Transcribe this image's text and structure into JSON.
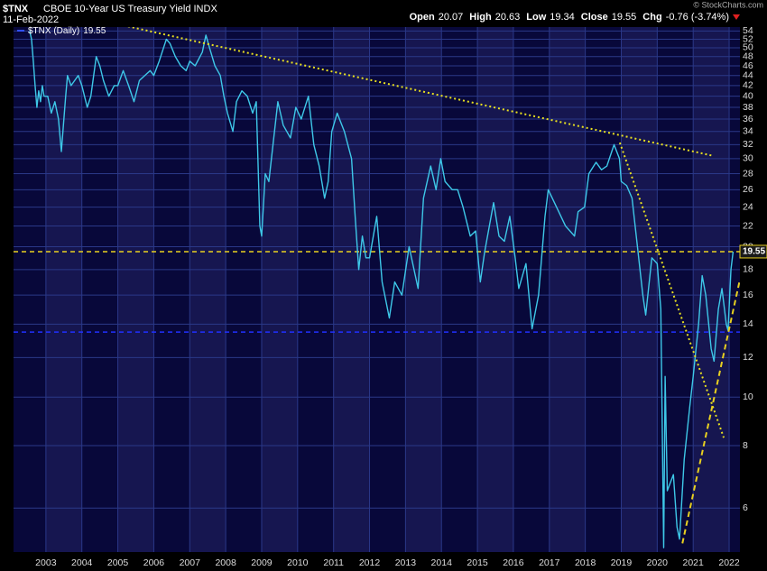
{
  "chart_data": {
    "type": "line",
    "symbol": "$TNX",
    "title": "CBOE 10-Year US Treasury Yield INDX",
    "date": "11-Feb-2022",
    "copyright": "© StockCharts.com",
    "stats": [
      {
        "label": "Open",
        "value": 20.07
      },
      {
        "label": "High",
        "value": 20.63
      },
      {
        "label": "Low",
        "value": 19.34
      },
      {
        "label": "Close",
        "value": 19.55
      },
      {
        "label": "Chg",
        "value": "-0.76 (-3.74%)"
      }
    ],
    "log_scale": true,
    "grid": true,
    "xlim": [
      2002.1,
      2022.3
    ],
    "xticks": [
      {
        "value": 2003,
        "label": "2003"
      },
      {
        "value": 2004,
        "label": "2004"
      },
      {
        "value": 2005,
        "label": "2005"
      },
      {
        "value": 2006,
        "label": "2006"
      },
      {
        "value": 2007,
        "label": "2007"
      },
      {
        "value": 2008,
        "label": "2008"
      },
      {
        "value": 2009,
        "label": "2009"
      },
      {
        "value": 2010,
        "label": "2010"
      },
      {
        "value": 2011,
        "label": "2011"
      },
      {
        "value": 2012,
        "label": "2012"
      },
      {
        "value": 2013,
        "label": "2013"
      },
      {
        "value": 2014,
        "label": "2014"
      },
      {
        "value": 2015,
        "label": "2015"
      },
      {
        "value": 2016,
        "label": "2016"
      },
      {
        "value": 2017,
        "label": "2017"
      },
      {
        "value": 2018,
        "label": "2018"
      },
      {
        "value": 2019,
        "label": "2019"
      },
      {
        "value": 2020,
        "label": "2020"
      },
      {
        "value": 2021,
        "label": "2021"
      },
      {
        "value": 2022,
        "label": "2022"
      }
    ],
    "ylim": [
      4.9,
      55
    ],
    "yticks": [
      6,
      8,
      10,
      12,
      14,
      16,
      18,
      20,
      22,
      24,
      26,
      28,
      30,
      32,
      34,
      36,
      38,
      40,
      42,
      44,
      46,
      48,
      50,
      52,
      54
    ],
    "x": [
      2002.55,
      2002.6,
      2002.65,
      2002.7,
      2002.75,
      2002.8,
      2002.85,
      2002.9,
      2002.95,
      2003.05,
      2003.15,
      2003.25,
      2003.35,
      2003.43,
      2003.55,
      2003.6,
      2003.7,
      2003.8,
      2003.9,
      2004.0,
      2004.15,
      2004.25,
      2004.4,
      2004.5,
      2004.6,
      2004.75,
      2004.9,
      2005.0,
      2005.15,
      2005.3,
      2005.45,
      2005.6,
      2005.75,
      2005.9,
      2006.0,
      2006.15,
      2006.35,
      2006.45,
      2006.6,
      2006.75,
      2006.9,
      2007.0,
      2007.15,
      2007.35,
      2007.45,
      2007.55,
      2007.7,
      2007.85,
      2007.95,
      2008.05,
      2008.2,
      2008.3,
      2008.45,
      2008.6,
      2008.75,
      2008.85,
      2008.95,
      2009.0,
      2009.1,
      2009.2,
      2009.45,
      2009.6,
      2009.8,
      2009.95,
      2010.1,
      2010.3,
      2010.45,
      2010.6,
      2010.75,
      2010.85,
      2010.95,
      2011.1,
      2011.3,
      2011.5,
      2011.6,
      2011.7,
      2011.8,
      2011.9,
      2012.0,
      2012.2,
      2012.35,
      2012.55,
      2012.7,
      2012.9,
      2013.1,
      2013.35,
      2013.5,
      2013.7,
      2013.85,
      2013.98,
      2014.1,
      2014.3,
      2014.45,
      2014.6,
      2014.8,
      2014.95,
      2015.08,
      2015.2,
      2015.45,
      2015.6,
      2015.75,
      2015.9,
      2016.05,
      2016.15,
      2016.35,
      2016.52,
      2016.7,
      2016.88,
      2016.97,
      2017.2,
      2017.45,
      2017.7,
      2017.8,
      2017.98,
      2018.1,
      2018.3,
      2018.45,
      2018.6,
      2018.8,
      2018.95,
      2019.0,
      2019.15,
      2019.3,
      2019.45,
      2019.6,
      2019.68,
      2019.85,
      2020.0,
      2020.1,
      2020.18,
      2020.22,
      2020.28,
      2020.45,
      2020.55,
      2020.62,
      2020.75,
      2020.9,
      2021.0,
      2021.15,
      2021.25,
      2021.35,
      2021.5,
      2021.58,
      2021.7,
      2021.8,
      2021.92,
      2021.97,
      2022.05,
      2022.11
    ],
    "series": [
      {
        "name": "$TNX (Daily)",
        "color": "#3ec8e8",
        "values": [
          54,
          52,
          47,
          42,
          38,
          41,
          39,
          42,
          40,
          40,
          37,
          39,
          36,
          31,
          40,
          44,
          42,
          43,
          44,
          42,
          38,
          40,
          48,
          46,
          43,
          40,
          42,
          42,
          45,
          42,
          39,
          43,
          44,
          45,
          44,
          47,
          52,
          51,
          48,
          46,
          45,
          47,
          46,
          49,
          53,
          50,
          46,
          44,
          40,
          37,
          34,
          39,
          41,
          40,
          37,
          39,
          22,
          21,
          28,
          27,
          39,
          35,
          33,
          38,
          36,
          40,
          32,
          29,
          25,
          27,
          34,
          37,
          34,
          30,
          23,
          18,
          21,
          19,
          19,
          23,
          17,
          14.4,
          17,
          16,
          20,
          16.5,
          25,
          29,
          26,
          30,
          27,
          26,
          26,
          24,
          21,
          21.5,
          17,
          19.5,
          24.5,
          21,
          20.5,
          23,
          19,
          16.5,
          18.5,
          13.7,
          16,
          23,
          26,
          24,
          22,
          21,
          23.5,
          24,
          28,
          29.5,
          28.5,
          29,
          32,
          30,
          27,
          26.5,
          25,
          20,
          16,
          14.6,
          19,
          18.5,
          15,
          5,
          11,
          6.5,
          7,
          5.5,
          5.2,
          7.5,
          9.5,
          11,
          14,
          17.5,
          16,
          12.5,
          11.8,
          15,
          16.5,
          14,
          13.6,
          18,
          19.55
        ]
      }
    ],
    "hlines": [
      {
        "value": 19.55,
        "color": "#e8d020"
      },
      {
        "value": 13.5,
        "color": "#2030ff"
      }
    ],
    "trendlines": [
      {
        "x": [
          2002.1,
          2021.55
        ],
        "y": [
          62,
          30.4
        ],
        "color": "#e8e020",
        "style": "dotted"
      },
      {
        "x": [
          2018.96,
          2021.85
        ],
        "y": [
          32.3,
          8.3
        ],
        "color": "#e8e020",
        "style": "dotted"
      },
      {
        "x": [
          2020.7,
          2022.3
        ],
        "y": [
          5.1,
          17.2
        ],
        "color": "#e8d020",
        "style": "dashed"
      }
    ]
  }
}
